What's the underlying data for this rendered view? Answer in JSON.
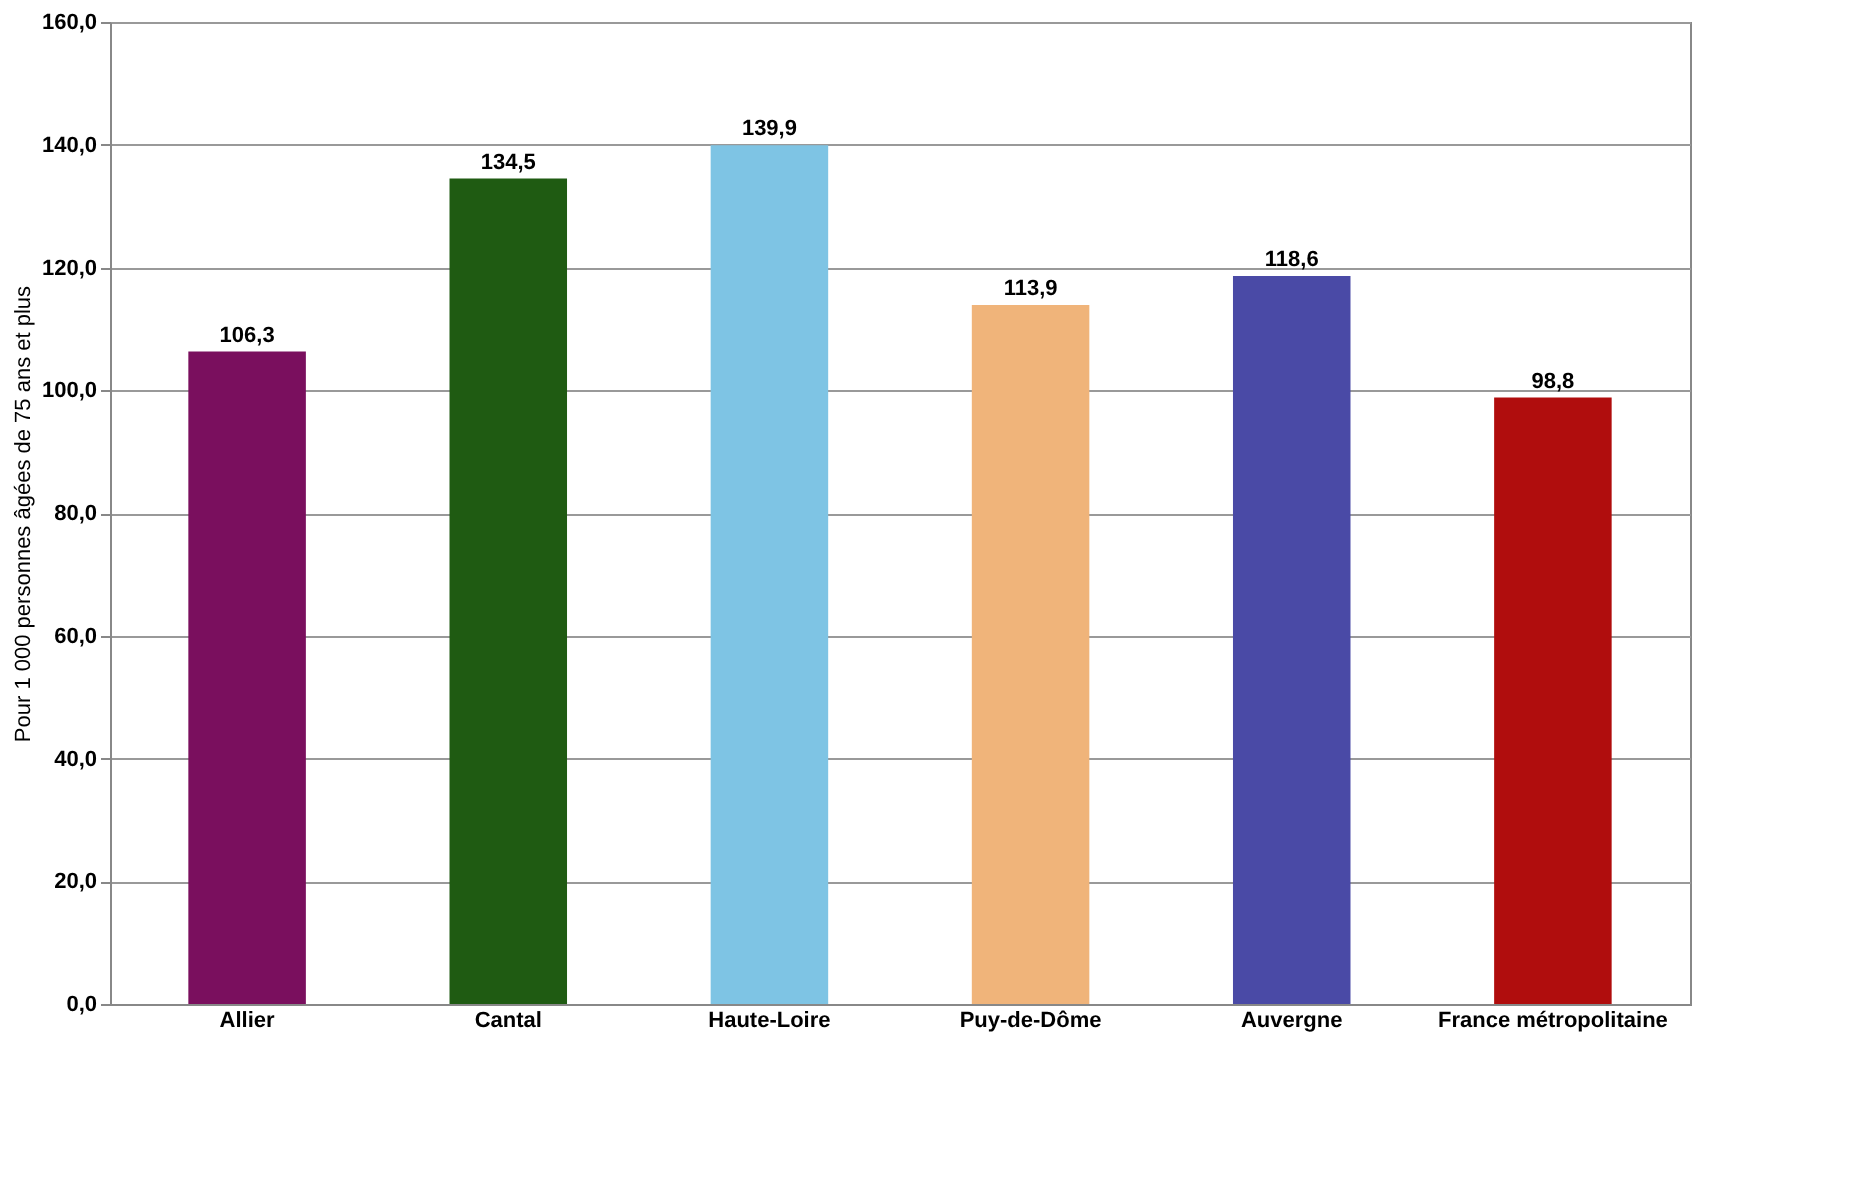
{
  "chart_data": {
    "type": "bar",
    "ylabel": "Pour 1 000 personnes âgées de 75 ans et plus",
    "categories": [
      "Allier",
      "Cantal",
      "Haute-Loire",
      "Puy-de-Dôme",
      "Auvergne",
      "France métropolitaine"
    ],
    "values": [
      106.3,
      134.5,
      139.9,
      113.9,
      118.6,
      98.8
    ],
    "colors": [
      "#7a0f5e",
      "#1f5b12",
      "#7ec4e4",
      "#f0b47a",
      "#4a4aa6",
      "#b00d0d"
    ],
    "value_labels": [
      "106,3",
      "134,5",
      "139,9",
      "113,9",
      "118,6",
      "98,8"
    ],
    "ylim": [
      0,
      160
    ],
    "yticks": [
      {
        "value": 0,
        "label": "0,0"
      },
      {
        "value": 20,
        "label": "20,0"
      },
      {
        "value": 40,
        "label": "40,0"
      },
      {
        "value": 60,
        "label": "60,0"
      },
      {
        "value": 80,
        "label": "80,0"
      },
      {
        "value": 100,
        "label": "100,0"
      },
      {
        "value": 120,
        "label": "120,0"
      },
      {
        "value": 140,
        "label": "140,0"
      },
      {
        "value": 160,
        "label": "160,0"
      }
    ],
    "grid": "y",
    "legend": false
  }
}
